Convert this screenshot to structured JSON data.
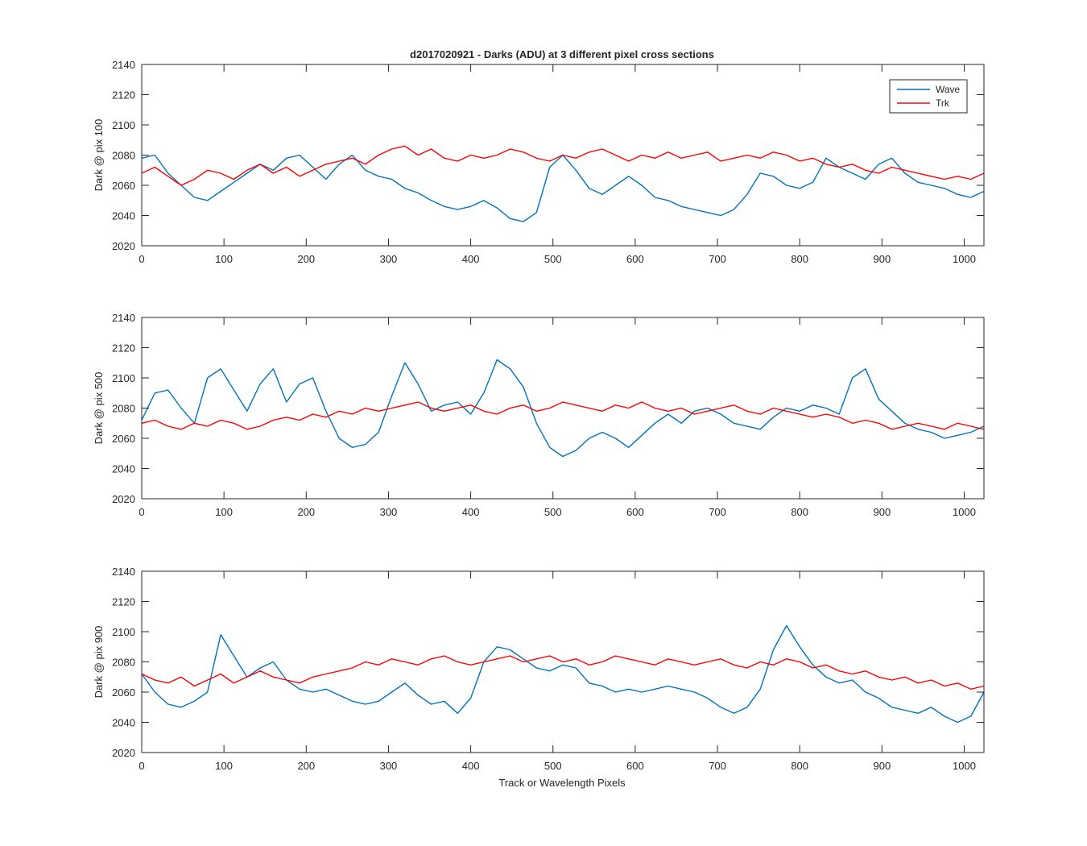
{
  "figure": {
    "title": "d2017020921 - Darks (ADU) at 3 different pixel cross sections",
    "xlabel": "Track or Wavelength Pixels"
  },
  "chart_data": [
    {
      "type": "line",
      "ylabel": "Dark @ pix 100",
      "xlim": [
        0,
        1024
      ],
      "ylim": [
        2020,
        2140
      ],
      "xticks": [
        0,
        100,
        200,
        300,
        400,
        500,
        600,
        700,
        800,
        900,
        1000
      ],
      "yticks": [
        2020,
        2040,
        2060,
        2080,
        2100,
        2120,
        2140
      ],
      "legend": "top-right",
      "grid": false,
      "series": [
        {
          "name": "Wave",
          "color": "#0072BD",
          "x_start": 0,
          "x_step": 16,
          "values": [
            2078,
            2080,
            2068,
            2060,
            2052,
            2050,
            2056,
            2062,
            2068,
            2074,
            2070,
            2078,
            2080,
            2072,
            2064,
            2074,
            2080,
            2070,
            2066,
            2064,
            2058,
            2055,
            2050,
            2046,
            2044,
            2046,
            2050,
            2045,
            2038,
            2036,
            2042,
            2072,
            2080,
            2070,
            2058,
            2054,
            2060,
            2066,
            2060,
            2052,
            2050,
            2046,
            2044,
            2042,
            2040,
            2044,
            2054,
            2068,
            2066,
            2060,
            2058,
            2062,
            2078,
            2072,
            2068,
            2064,
            2074,
            2078,
            2068,
            2062,
            2060,
            2058,
            2054,
            2052,
            2056
          ]
        },
        {
          "name": "Trk",
          "color": "#FF0000",
          "x_start": 0,
          "x_step": 16,
          "values": [
            2068,
            2072,
            2066,
            2060,
            2064,
            2070,
            2068,
            2064,
            2070,
            2074,
            2068,
            2072,
            2066,
            2070,
            2074,
            2076,
            2078,
            2074,
            2080,
            2084,
            2086,
            2080,
            2084,
            2078,
            2076,
            2080,
            2078,
            2080,
            2084,
            2082,
            2078,
            2076,
            2080,
            2078,
            2082,
            2084,
            2080,
            2076,
            2080,
            2078,
            2082,
            2078,
            2080,
            2082,
            2076,
            2078,
            2080,
            2078,
            2082,
            2080,
            2076,
            2078,
            2074,
            2072,
            2074,
            2070,
            2068,
            2072,
            2070,
            2068,
            2066,
            2064,
            2066,
            2064,
            2068
          ]
        }
      ]
    },
    {
      "type": "line",
      "ylabel": "Dark @ pix 500",
      "xlim": [
        0,
        1024
      ],
      "ylim": [
        2020,
        2140
      ],
      "xticks": [
        0,
        100,
        200,
        300,
        400,
        500,
        600,
        700,
        800,
        900,
        1000
      ],
      "yticks": [
        2020,
        2040,
        2060,
        2080,
        2100,
        2120,
        2140
      ],
      "grid": false,
      "series": [
        {
          "name": "Wave",
          "color": "#0072BD",
          "x_start": 0,
          "x_step": 16,
          "values": [
            2072,
            2090,
            2092,
            2080,
            2070,
            2100,
            2106,
            2092,
            2078,
            2096,
            2106,
            2084,
            2096,
            2100,
            2078,
            2060,
            2054,
            2056,
            2064,
            2088,
            2110,
            2096,
            2078,
            2082,
            2084,
            2076,
            2090,
            2112,
            2106,
            2094,
            2070,
            2054,
            2048,
            2052,
            2060,
            2064,
            2060,
            2054,
            2062,
            2070,
            2076,
            2070,
            2078,
            2080,
            2076,
            2070,
            2068,
            2066,
            2074,
            2080,
            2078,
            2082,
            2080,
            2076,
            2100,
            2106,
            2086,
            2078,
            2070,
            2066,
            2064,
            2060,
            2062,
            2064,
            2068
          ]
        },
        {
          "name": "Trk",
          "color": "#FF0000",
          "x_start": 0,
          "x_step": 16,
          "values": [
            2070,
            2072,
            2068,
            2066,
            2070,
            2068,
            2072,
            2070,
            2066,
            2068,
            2072,
            2074,
            2072,
            2076,
            2074,
            2078,
            2076,
            2080,
            2078,
            2080,
            2082,
            2084,
            2080,
            2078,
            2080,
            2082,
            2078,
            2076,
            2080,
            2082,
            2078,
            2080,
            2084,
            2082,
            2080,
            2078,
            2082,
            2080,
            2084,
            2080,
            2078,
            2080,
            2076,
            2078,
            2080,
            2082,
            2078,
            2076,
            2080,
            2078,
            2076,
            2074,
            2076,
            2074,
            2070,
            2072,
            2070,
            2066,
            2068,
            2070,
            2068,
            2066,
            2070,
            2068,
            2066
          ]
        }
      ]
    },
    {
      "type": "line",
      "ylabel": "Dark @ pix 900",
      "xlabel": "Track or Wavelength Pixels",
      "xlim": [
        0,
        1024
      ],
      "ylim": [
        2020,
        2140
      ],
      "xticks": [
        0,
        100,
        200,
        300,
        400,
        500,
        600,
        700,
        800,
        900,
        1000
      ],
      "yticks": [
        2020,
        2040,
        2060,
        2080,
        2100,
        2120,
        2140
      ],
      "grid": false,
      "series": [
        {
          "name": "Wave",
          "color": "#0072BD",
          "x_start": 0,
          "x_step": 16,
          "values": [
            2072,
            2060,
            2052,
            2050,
            2054,
            2060,
            2098,
            2084,
            2070,
            2076,
            2080,
            2068,
            2062,
            2060,
            2062,
            2058,
            2054,
            2052,
            2054,
            2060,
            2066,
            2058,
            2052,
            2054,
            2046,
            2056,
            2080,
            2090,
            2088,
            2082,
            2076,
            2074,
            2078,
            2076,
            2066,
            2064,
            2060,
            2062,
            2060,
            2062,
            2064,
            2062,
            2060,
            2056,
            2050,
            2046,
            2050,
            2062,
            2088,
            2104,
            2090,
            2078,
            2070,
            2066,
            2068,
            2060,
            2056,
            2050,
            2048,
            2046,
            2050,
            2044,
            2040,
            2044,
            2060
          ]
        },
        {
          "name": "Trk",
          "color": "#FF0000",
          "x_start": 0,
          "x_step": 16,
          "values": [
            2072,
            2068,
            2066,
            2070,
            2064,
            2068,
            2072,
            2066,
            2070,
            2074,
            2070,
            2068,
            2066,
            2070,
            2072,
            2074,
            2076,
            2080,
            2078,
            2082,
            2080,
            2078,
            2082,
            2084,
            2080,
            2078,
            2080,
            2082,
            2084,
            2080,
            2082,
            2084,
            2080,
            2082,
            2078,
            2080,
            2084,
            2082,
            2080,
            2078,
            2082,
            2080,
            2078,
            2080,
            2082,
            2078,
            2076,
            2080,
            2078,
            2082,
            2080,
            2076,
            2078,
            2074,
            2072,
            2074,
            2070,
            2068,
            2070,
            2066,
            2068,
            2064,
            2066,
            2062,
            2064
          ]
        }
      ]
    }
  ]
}
